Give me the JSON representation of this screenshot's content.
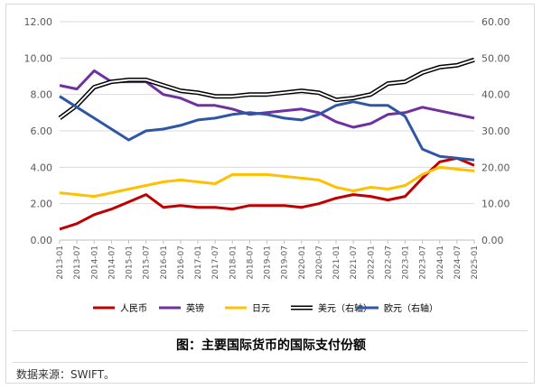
{
  "caption": "图：主要国际货币的国际支付份额",
  "source": "数据来源：SWIFT。",
  "chart_data": {
    "type": "line",
    "x_ticks": [
      "2013-01",
      "2013-07",
      "2014-01",
      "2014-07",
      "2015-01",
      "2015-07",
      "2016-01",
      "2016-07",
      "2017-01",
      "2017-07",
      "2018-01",
      "2018-07",
      "2019-01",
      "2019-07",
      "2020-01",
      "2020-07",
      "2021-01",
      "2021-07",
      "2022-01",
      "2022-07",
      "2023-01",
      "2023-07",
      "2024-01",
      "2024-07",
      "2025-01"
    ],
    "y_left": {
      "range": [
        0,
        12
      ],
      "ticks": [
        "0.00",
        "2.00",
        "4.00",
        "6.00",
        "8.00",
        "10.00",
        "12.00"
      ]
    },
    "y_right": {
      "range": [
        0,
        60
      ],
      "ticks": [
        "0.00",
        "10.00",
        "20.00",
        "30.00",
        "40.00",
        "50.00",
        "60.00"
      ]
    },
    "grid": true,
    "legend_position": "bottom",
    "series": [
      {
        "name": "人民币",
        "axis": "left",
        "color": "#c00000",
        "values": [
          0.6,
          0.9,
          1.4,
          1.7,
          2.1,
          2.5,
          1.8,
          1.9,
          1.8,
          1.8,
          1.7,
          1.9,
          1.9,
          1.9,
          1.8,
          2.0,
          2.3,
          2.5,
          2.4,
          2.2,
          2.4,
          3.4,
          4.3,
          4.5,
          4.1
        ]
      },
      {
        "name": "英镑",
        "axis": "left",
        "color": "#7030a0",
        "values": [
          8.5,
          8.3,
          9.3,
          8.7,
          8.7,
          8.7,
          8.0,
          7.8,
          7.4,
          7.4,
          7.2,
          6.9,
          7.0,
          7.1,
          7.2,
          7.0,
          6.5,
          6.2,
          6.4,
          6.9,
          7.0,
          7.3,
          7.1,
          6.9,
          6.7
        ]
      },
      {
        "name": "日元",
        "axis": "left",
        "color": "#ffc000",
        "values": [
          2.6,
          2.5,
          2.4,
          2.6,
          2.8,
          3.0,
          3.2,
          3.3,
          3.2,
          3.1,
          3.6,
          3.6,
          3.6,
          3.5,
          3.4,
          3.3,
          2.9,
          2.7,
          2.9,
          2.8,
          3.0,
          3.6,
          4.0,
          3.9,
          3.8
        ]
      },
      {
        "name": "美元（右轴）",
        "axis": "right",
        "color": "#000000",
        "values": [
          33.5,
          37,
          42,
          43.5,
          44,
          44,
          42.5,
          41,
          40.5,
          39.5,
          39.5,
          40,
          40,
          40.5,
          41,
          40.5,
          38.5,
          39,
          40,
          43,
          43.5,
          46,
          47.5,
          48,
          49.5
        ]
      },
      {
        "name": "欧元（右轴）",
        "axis": "right",
        "color": "#2f56a5",
        "values": [
          39.5,
          36.5,
          33.5,
          30.5,
          27.5,
          30,
          30.5,
          31.5,
          33,
          33.5,
          34.5,
          35,
          34.5,
          33.5,
          33,
          34.5,
          37,
          38,
          37,
          37,
          34,
          25,
          23,
          22.5,
          22
        ]
      }
    ]
  }
}
